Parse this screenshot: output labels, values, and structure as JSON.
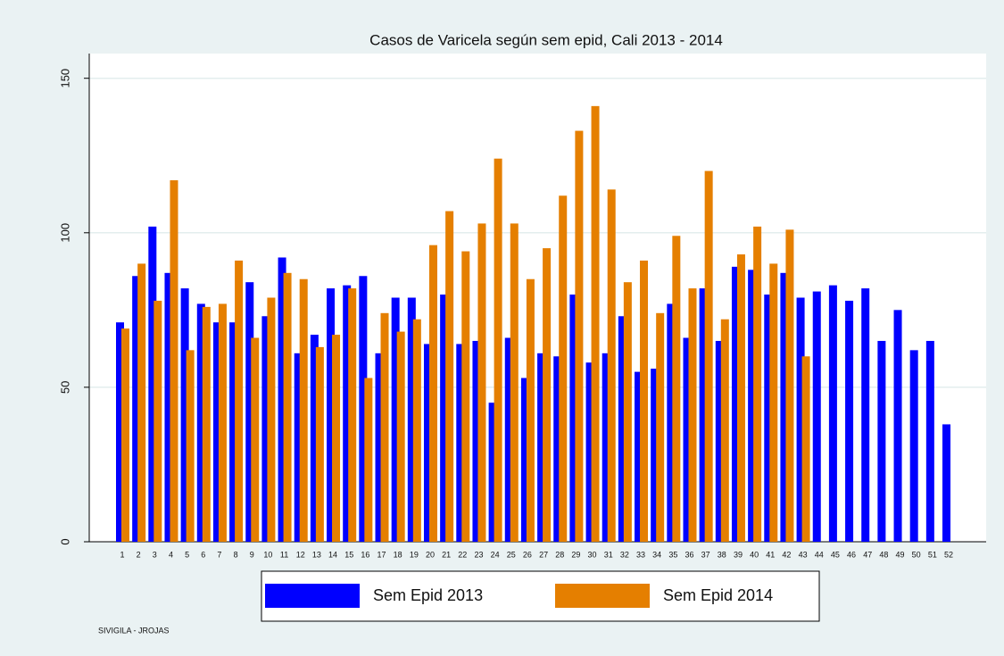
{
  "chart_data": {
    "type": "bar",
    "title": "Casos de Varicela según sem epid, Cali 2013 - 2014",
    "categories": [
      "1",
      "2",
      "3",
      "4",
      "5",
      "6",
      "7",
      "8",
      "9",
      "10",
      "11",
      "12",
      "13",
      "14",
      "15",
      "16",
      "17",
      "18",
      "19",
      "20",
      "21",
      "22",
      "23",
      "24",
      "25",
      "26",
      "27",
      "28",
      "29",
      "30",
      "31",
      "32",
      "33",
      "34",
      "35",
      "36",
      "37",
      "38",
      "39",
      "40",
      "41",
      "42",
      "43",
      "44",
      "45",
      "46",
      "47",
      "48",
      "49",
      "50",
      "51",
      "52"
    ],
    "series": [
      {
        "name": "Sem Epid 2013",
        "color": "#0000ff",
        "values": [
          71,
          86,
          102,
          87,
          82,
          77,
          71,
          71,
          84,
          73,
          92,
          61,
          67,
          82,
          83,
          86,
          61,
          79,
          79,
          64,
          80,
          64,
          65,
          45,
          66,
          53,
          61,
          60,
          80,
          58,
          61,
          73,
          55,
          56,
          77,
          66,
          82,
          65,
          89,
          88,
          80,
          87,
          79,
          81,
          83,
          78,
          82,
          65,
          75,
          62,
          65,
          38
        ]
      },
      {
        "name": "Sem Epid 2014",
        "color": "#e57f00",
        "values": [
          69,
          90,
          78,
          117,
          62,
          76,
          77,
          91,
          66,
          79,
          87,
          85,
          63,
          67,
          82,
          53,
          74,
          68,
          72,
          96,
          107,
          94,
          103,
          124,
          103,
          85,
          95,
          112,
          133,
          141,
          114,
          84,
          91,
          74,
          99,
          82,
          120,
          72,
          93,
          102,
          90,
          101,
          60,
          null,
          null,
          null,
          null,
          null,
          null,
          null,
          null,
          null
        ]
      }
    ],
    "ylim": [
      0,
      158
    ],
    "yticks": [
      0,
      50,
      100,
      150
    ],
    "grid": true,
    "note": "SIVIGILA - JROJAS"
  }
}
